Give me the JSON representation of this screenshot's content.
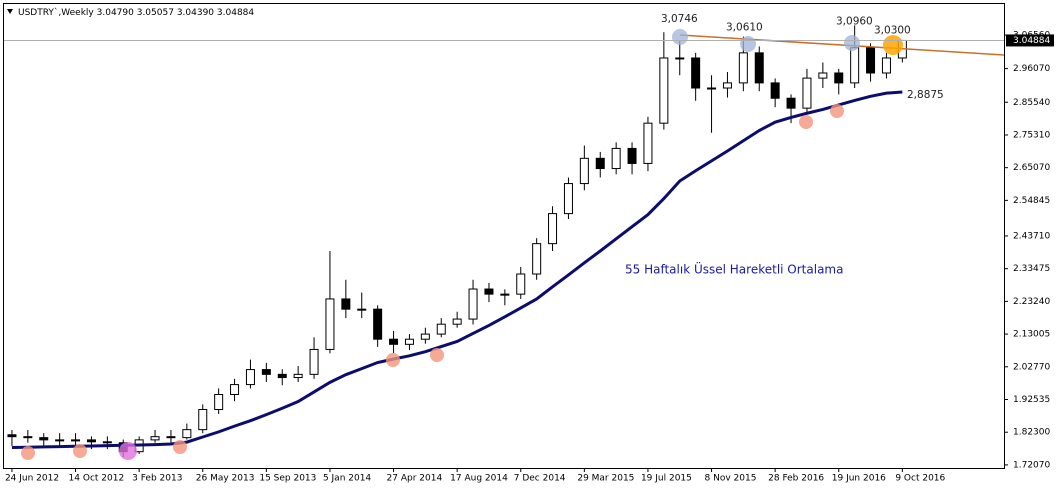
{
  "header": {
    "symbol": "USDTRY`,Weekly",
    "values": [
      "3.04790",
      "3.05057",
      "3.04390",
      "3.04884"
    ]
  },
  "chart_data": {
    "type": "candlestick",
    "categories": [
      "24 Jun 2012",
      null,
      null,
      null,
      "14 Oct 2012",
      null,
      null,
      null,
      "3 Feb 2013",
      null,
      null,
      null,
      "26 May 2013",
      null,
      null,
      null,
      "15 Sep 2013",
      null,
      null,
      null,
      "5 Jan 2014",
      null,
      null,
      null,
      "27 Apr 2014",
      null,
      null,
      null,
      "17 Aug 2014",
      null,
      null,
      null,
      "7 Dec 2014",
      null,
      null,
      null,
      "29 Mar 2015",
      null,
      null,
      null,
      "19 Jul 2015",
      null,
      null,
      null,
      "8 Nov 2015",
      null,
      null,
      null,
      "28 Feb 2016",
      null,
      null,
      null,
      "19 Jun 2016",
      null,
      null,
      null,
      "9 Oct 2016"
    ],
    "open": [
      1.815,
      1.809,
      1.806,
      1.799,
      1.799,
      1.799,
      1.793,
      1.79,
      1.762,
      1.799,
      1.809,
      1.806,
      1.831,
      1.894,
      1.941,
      1.972,
      2.019,
      2.004,
      1.994,
      2.004,
      2.082,
      2.24,
      2.208,
      2.208,
      2.114,
      2.098,
      2.114,
      2.13,
      2.161,
      2.177,
      2.271,
      2.255,
      2.255,
      2.318,
      2.413,
      2.507,
      2.601,
      2.68,
      2.648,
      2.711,
      2.664,
      2.79,
      2.994,
      2.994,
      2.9,
      2.9,
      2.916,
      3.01,
      2.916,
      2.868,
      2.837,
      2.931,
      2.947,
      2.916,
      3.026,
      2.947,
      2.994
    ],
    "high": [
      1.83,
      1.83,
      1.82,
      1.82,
      1.82,
      1.81,
      1.81,
      1.8,
      1.81,
      1.83,
      1.83,
      1.85,
      1.91,
      1.96,
      1.99,
      2.05,
      2.04,
      2.02,
      2.03,
      2.12,
      2.39,
      2.3,
      2.26,
      2.22,
      2.14,
      2.13,
      2.15,
      2.18,
      2.2,
      2.3,
      2.29,
      2.27,
      2.34,
      2.43,
      2.53,
      2.62,
      2.72,
      2.7,
      2.73,
      2.73,
      2.81,
      3.0746,
      3.05,
      3.01,
      2.94,
      2.95,
      3.061,
      3.03,
      2.93,
      2.88,
      2.96,
      2.98,
      2.96,
      3.096,
      3.04,
      3.01,
      3.0505
    ],
    "low": [
      1.78,
      1.79,
      1.78,
      1.78,
      1.78,
      1.77,
      1.77,
      1.745,
      1.755,
      1.79,
      1.79,
      1.8,
      1.82,
      1.88,
      1.92,
      1.96,
      1.98,
      1.97,
      1.98,
      1.99,
      2.07,
      2.18,
      2.18,
      2.09,
      2.07,
      2.08,
      2.1,
      2.12,
      2.15,
      2.16,
      2.23,
      2.22,
      2.24,
      2.3,
      2.39,
      2.49,
      2.58,
      2.62,
      2.63,
      2.63,
      2.64,
      2.77,
      2.94,
      2.86,
      2.76,
      2.87,
      2.89,
      2.89,
      2.84,
      2.79,
      2.82,
      2.9,
      2.88,
      2.9,
      2.92,
      2.93,
      2.98
    ],
    "close": [
      1.809,
      1.806,
      1.799,
      1.799,
      1.799,
      1.793,
      1.79,
      1.762,
      1.799,
      1.809,
      1.806,
      1.831,
      1.894,
      1.941,
      1.972,
      2.019,
      2.004,
      1.994,
      2.004,
      2.082,
      2.24,
      2.208,
      2.208,
      2.114,
      2.098,
      2.114,
      2.13,
      2.161,
      2.177,
      2.271,
      2.255,
      2.255,
      2.318,
      2.413,
      2.507,
      2.601,
      2.68,
      2.648,
      2.711,
      2.664,
      2.79,
      2.994,
      2.994,
      2.9,
      2.9,
      2.916,
      3.01,
      2.916,
      2.868,
      2.837,
      2.931,
      2.947,
      2.916,
      3.026,
      2.947,
      2.994,
      3.04884
    ],
    "ma": {
      "name": "55 Haftalık Üssel Hareketli Ortalama",
      "color": "#0c0c6e",
      "values": [
        1.775,
        1.776,
        1.777,
        1.778,
        1.779,
        1.78,
        1.781,
        1.782,
        1.783,
        1.784,
        1.786,
        1.792,
        1.808,
        1.824,
        1.842,
        1.859,
        1.878,
        1.898,
        1.919,
        1.949,
        1.979,
        2.003,
        2.022,
        2.041,
        2.052,
        2.062,
        2.075,
        2.091,
        2.107,
        2.132,
        2.157,
        2.184,
        2.212,
        2.24,
        2.278,
        2.315,
        2.353,
        2.39,
        2.428,
        2.466,
        2.504,
        2.554,
        2.609,
        2.641,
        2.672,
        2.703,
        2.735,
        2.767,
        2.793,
        2.808,
        2.821,
        2.833,
        2.847,
        2.861,
        2.874,
        2.884,
        2.8875
      ]
    },
    "annotations": [
      {
        "value": 3.0746,
        "label": "3,0746"
      },
      {
        "value": 3.061,
        "label": "3,0610"
      },
      {
        "value": 3.096,
        "label": "3,0960"
      },
      {
        "value": 3.03,
        "label": "3,0300"
      },
      {
        "value": 2.8875,
        "label": "2,8875"
      }
    ],
    "last_price": {
      "value": 3.04884,
      "label": "3.04884"
    },
    "ylim": [
      1.711,
      3.166
    ],
    "yticks": [
      {
        "value": 1.7207,
        "label": "1.72070"
      },
      {
        "value": 1.823,
        "label": "1.82300"
      },
      {
        "value": 1.92535,
        "label": "1.92535"
      },
      {
        "value": 2.0277,
        "label": "2.02770"
      },
      {
        "value": 2.13005,
        "label": "2.13005"
      },
      {
        "value": 2.2324,
        "label": "2.23240"
      },
      {
        "value": 2.33475,
        "label": "2.33475"
      },
      {
        "value": 2.4371,
        "label": "2.43710"
      },
      {
        "value": 2.54845,
        "label": "2.54845"
      },
      {
        "value": 2.6507,
        "label": "2.65070"
      },
      {
        "value": 2.7531,
        "label": "2.75310"
      },
      {
        "value": 2.8554,
        "label": "2.85540"
      },
      {
        "value": 2.9607,
        "label": "2.96070"
      },
      {
        "value": 3.0656,
        "label": "3.06560"
      }
    ]
  }
}
